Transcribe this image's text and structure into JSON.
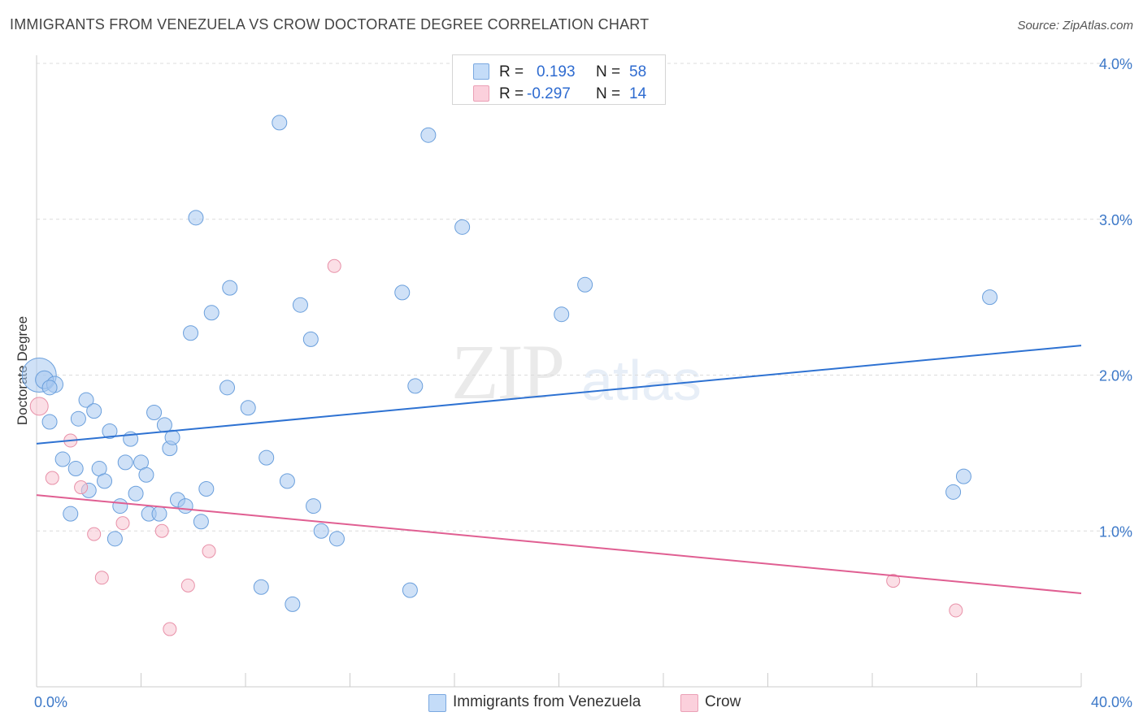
{
  "header": {
    "title": "IMMIGRANTS FROM VENEZUELA VS CROW DOCTORATE DEGREE CORRELATION CHART",
    "source": "Source: ZipAtlas.com"
  },
  "watermark": {
    "zip": "ZIP",
    "atlas": "atlas"
  },
  "legend": {
    "rows": [
      {
        "r_label": "R =",
        "r_value": "0.193",
        "n_label": "N =",
        "n_value": "58",
        "color": "#a8c8f0"
      },
      {
        "r_label": "R =",
        "r_value": "-0.297",
        "n_label": "N =",
        "n_value": "14",
        "color": "#f5b8c8"
      }
    ]
  },
  "bottom_legend": {
    "series1": "Immigrants from Venezuela",
    "series2": "Crow"
  },
  "colors": {
    "blue_fill": "#a8c8f0",
    "blue_stroke": "#6a9fdc",
    "blue_line": "#2e72d2",
    "pink_fill": "#f8c4d2",
    "pink_stroke": "#e890a8",
    "pink_line": "#e05f92",
    "tick_color": "#3c78c8"
  },
  "chart_data": {
    "type": "scatter",
    "title": "IMMIGRANTS FROM VENEZUELA VS CROW DOCTORATE DEGREE CORRELATION CHART",
    "xlabel": "",
    "ylabel": "Doctorate Degree",
    "xlim": [
      0,
      40
    ],
    "ylim": [
      0,
      4.0
    ],
    "x_tick_labels": [
      "0.0%",
      "40.0%"
    ],
    "y_ticks": [
      1.0,
      2.0,
      3.0,
      4.0
    ],
    "y_tick_labels": [
      "1.0%",
      "2.0%",
      "3.0%",
      "4.0%"
    ],
    "grid": true,
    "series": [
      {
        "name": "Immigrants from Venezuela",
        "color": "#a8c8f0",
        "trend": {
          "x": [
            0,
            40
          ],
          "y": [
            1.56,
            2.19
          ]
        },
        "points": [
          [
            0.1,
            2.0,
            22
          ],
          [
            0.3,
            1.97,
            12
          ],
          [
            0.7,
            1.94,
            11
          ],
          [
            0.5,
            1.92,
            10
          ],
          [
            0.5,
            1.7,
            10
          ],
          [
            1.0,
            1.46,
            10
          ],
          [
            1.3,
            1.11,
            10
          ],
          [
            1.5,
            1.4,
            10
          ],
          [
            1.6,
            1.72,
            10
          ],
          [
            1.9,
            1.84,
            10
          ],
          [
            2.0,
            1.26,
            10
          ],
          [
            2.2,
            1.77,
            10
          ],
          [
            2.4,
            1.4,
            10
          ],
          [
            2.6,
            1.32,
            10
          ],
          [
            2.8,
            1.64,
            10
          ],
          [
            3.0,
            0.95,
            10
          ],
          [
            3.2,
            1.16,
            10
          ],
          [
            3.4,
            1.44,
            10
          ],
          [
            3.6,
            1.59,
            10
          ],
          [
            3.8,
            1.24,
            10
          ],
          [
            4.0,
            1.44,
            10
          ],
          [
            4.2,
            1.36,
            10
          ],
          [
            4.3,
            1.11,
            10
          ],
          [
            4.5,
            1.76,
            10
          ],
          [
            4.7,
            1.11,
            10
          ],
          [
            4.9,
            1.68,
            10
          ],
          [
            5.1,
            1.53,
            10
          ],
          [
            5.2,
            1.6,
            10
          ],
          [
            5.4,
            1.2,
            10
          ],
          [
            5.7,
            1.16,
            10
          ],
          [
            5.9,
            2.27,
            10
          ],
          [
            6.1,
            3.01,
            10
          ],
          [
            6.3,
            1.06,
            10
          ],
          [
            6.5,
            1.27,
            10
          ],
          [
            6.7,
            2.4,
            10
          ],
          [
            7.3,
            1.92,
            10
          ],
          [
            7.4,
            2.56,
            10
          ],
          [
            8.1,
            1.79,
            10
          ],
          [
            8.6,
            0.64,
            10
          ],
          [
            8.8,
            1.47,
            10
          ],
          [
            9.3,
            3.62,
            10
          ],
          [
            9.6,
            1.32,
            10
          ],
          [
            9.8,
            0.53,
            10
          ],
          [
            10.1,
            2.45,
            10
          ],
          [
            10.5,
            2.23,
            10
          ],
          [
            10.6,
            1.16,
            10
          ],
          [
            10.9,
            1.0,
            10
          ],
          [
            11.5,
            0.95,
            10
          ],
          [
            14.0,
            2.53,
            10
          ],
          [
            14.3,
            0.62,
            10
          ],
          [
            14.5,
            1.93,
            10
          ],
          [
            15.0,
            3.54,
            10
          ],
          [
            16.3,
            2.95,
            10
          ],
          [
            20.1,
            2.39,
            10
          ],
          [
            21.0,
            2.58,
            10
          ],
          [
            35.1,
            1.25,
            10
          ],
          [
            35.5,
            1.35,
            10
          ],
          [
            36.5,
            2.5,
            10
          ]
        ]
      },
      {
        "name": "Crow",
        "color": "#f5b8c8",
        "trend": {
          "x": [
            0,
            40
          ],
          "y": [
            1.23,
            0.6
          ]
        },
        "points": [
          [
            0.1,
            1.8,
            12
          ],
          [
            0.6,
            1.34,
            9
          ],
          [
            1.3,
            1.58,
            9
          ],
          [
            1.7,
            1.28,
            9
          ],
          [
            2.2,
            0.98,
            9
          ],
          [
            2.5,
            0.7,
            9
          ],
          [
            3.3,
            1.05,
            9
          ],
          [
            4.8,
            1.0,
            9
          ],
          [
            5.1,
            0.37,
            9
          ],
          [
            5.8,
            0.65,
            9
          ],
          [
            6.6,
            0.87,
            9
          ],
          [
            11.4,
            2.7,
            9
          ],
          [
            32.8,
            0.68,
            9
          ],
          [
            35.2,
            0.49,
            9
          ]
        ]
      }
    ]
  }
}
